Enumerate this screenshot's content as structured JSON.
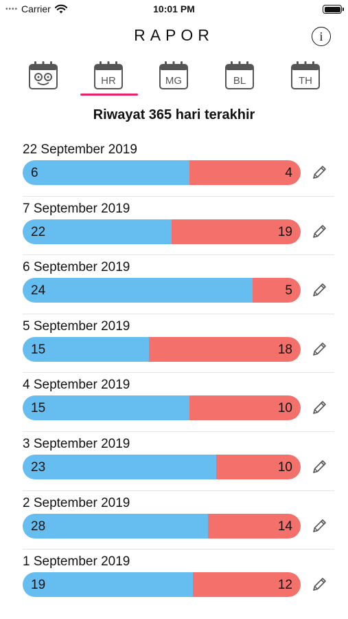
{
  "status": {
    "carrier": "Carrier",
    "time": "10:01 PM"
  },
  "header": {
    "title": "RAPOR",
    "info": "i"
  },
  "tabs": [
    {
      "label": "",
      "icon": "face-calendar-icon",
      "active": false
    },
    {
      "label": "HR",
      "icon": "calendar-icon",
      "active": true
    },
    {
      "label": "MG",
      "icon": "calendar-icon",
      "active": false
    },
    {
      "label": "BL",
      "icon": "calendar-icon",
      "active": false
    },
    {
      "label": "TH",
      "icon": "calendar-icon",
      "active": false
    }
  ],
  "subtitle": "Riwayat 365 hari terakhir",
  "colors": {
    "blue": "#66bdf0",
    "red": "#f4706b",
    "accent": "#e8216b"
  },
  "entries": [
    {
      "date": "22 September 2019",
      "blue": 6,
      "red": 4
    },
    {
      "date": "7 September 2019",
      "blue": 22,
      "red": 19
    },
    {
      "date": "6 September 2019",
      "blue": 24,
      "red": 5
    },
    {
      "date": "5 September 2019",
      "blue": 15,
      "red": 18
    },
    {
      "date": "4 September 2019",
      "blue": 15,
      "red": 10
    },
    {
      "date": "3 September 2019",
      "blue": 23,
      "red": 10
    },
    {
      "date": "2 September 2019",
      "blue": 28,
      "red": 14
    },
    {
      "date": "1 September 2019",
      "blue": 19,
      "red": 12
    }
  ]
}
